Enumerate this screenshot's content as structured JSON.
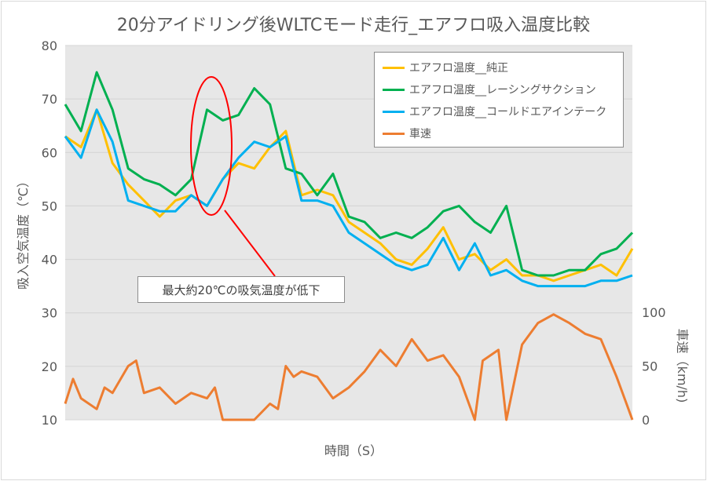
{
  "chart_data": {
    "type": "line",
    "title": "20分アイドリング後WLTCモード走行_エアフロ吸入温度比較",
    "xlabel": "時間（S）",
    "ylabel": "吸入空気温度（℃）",
    "y2label": "車速（km/h)",
    "ylim": [
      10,
      80
    ],
    "yticks": [
      "10",
      "20",
      "30",
      "40",
      "50",
      "60",
      "70",
      "80"
    ],
    "y2lim": [
      0,
      100
    ],
    "y2ticks": [
      "0",
      "50",
      "100"
    ],
    "grid": true,
    "legend_position": "top-right",
    "x": [
      0,
      1,
      2,
      3,
      4,
      5,
      6,
      7,
      8,
      9,
      10,
      11,
      12,
      13,
      14,
      15,
      16,
      17,
      18,
      19,
      20,
      21,
      22,
      23,
      24,
      25,
      26,
      27,
      28,
      29,
      30,
      31,
      32,
      33,
      34,
      35,
      36
    ],
    "series": [
      {
        "name": "エアフロ温度__純正",
        "color": "#ffc000",
        "axis": "left",
        "values": [
          63,
          61,
          68,
          58,
          54,
          51,
          48,
          51,
          52,
          50,
          55,
          58,
          57,
          61,
          64,
          52,
          53,
          52,
          47,
          45,
          43,
          40,
          39,
          42,
          46,
          40,
          41,
          38,
          40,
          37,
          37,
          36,
          37,
          38,
          39,
          37,
          42
        ]
      },
      {
        "name": "エアフロ温度__レーシングサクション",
        "color": "#00b050",
        "axis": "left",
        "values": [
          69,
          64,
          75,
          68,
          57,
          55,
          54,
          52,
          55,
          68,
          66,
          67,
          72,
          69,
          57,
          56,
          52,
          56,
          48,
          47,
          44,
          45,
          44,
          46,
          49,
          50,
          47,
          45,
          50,
          38,
          37,
          37,
          38,
          38,
          41,
          42,
          45
        ]
      },
      {
        "name": "エアフロ温度__コールドエアインテーク",
        "color": "#00b0f0",
        "axis": "left",
        "values": [
          63,
          59,
          68,
          62,
          51,
          50,
          49,
          49,
          52,
          50,
          55,
          59,
          62,
          61,
          63,
          51,
          51,
          50,
          45,
          43,
          41,
          39,
          38,
          39,
          44,
          38,
          43,
          37,
          38,
          36,
          35,
          35,
          35,
          35,
          36,
          36,
          37
        ]
      },
      {
        "name": "車速",
        "color": "#ed7d31",
        "axis": "right",
        "x": [
          0,
          0.5,
          1,
          2,
          2.5,
          3,
          4,
          4.5,
          5,
          6,
          7,
          8,
          9,
          9.5,
          10,
          11,
          12,
          13,
          13.5,
          14,
          14.5,
          15,
          16,
          17,
          18,
          19,
          20,
          21,
          22,
          23,
          24,
          25,
          26,
          26.5,
          27,
          27.5,
          28,
          29,
          30,
          31,
          32,
          33,
          34,
          35,
          35.5,
          36
        ],
        "values": [
          15,
          38,
          20,
          10,
          30,
          25,
          50,
          55,
          25,
          30,
          15,
          25,
          20,
          30,
          0,
          0,
          0,
          15,
          10,
          50,
          40,
          45,
          40,
          20,
          30,
          45,
          65,
          50,
          75,
          55,
          60,
          40,
          0,
          55,
          60,
          65,
          0,
          70,
          90,
          98,
          90,
          80,
          75,
          40,
          20,
          0
        ]
      }
    ]
  },
  "annotation": {
    "text": "最大約20℃の吸気温度が低下",
    "color": "#ff0000"
  }
}
